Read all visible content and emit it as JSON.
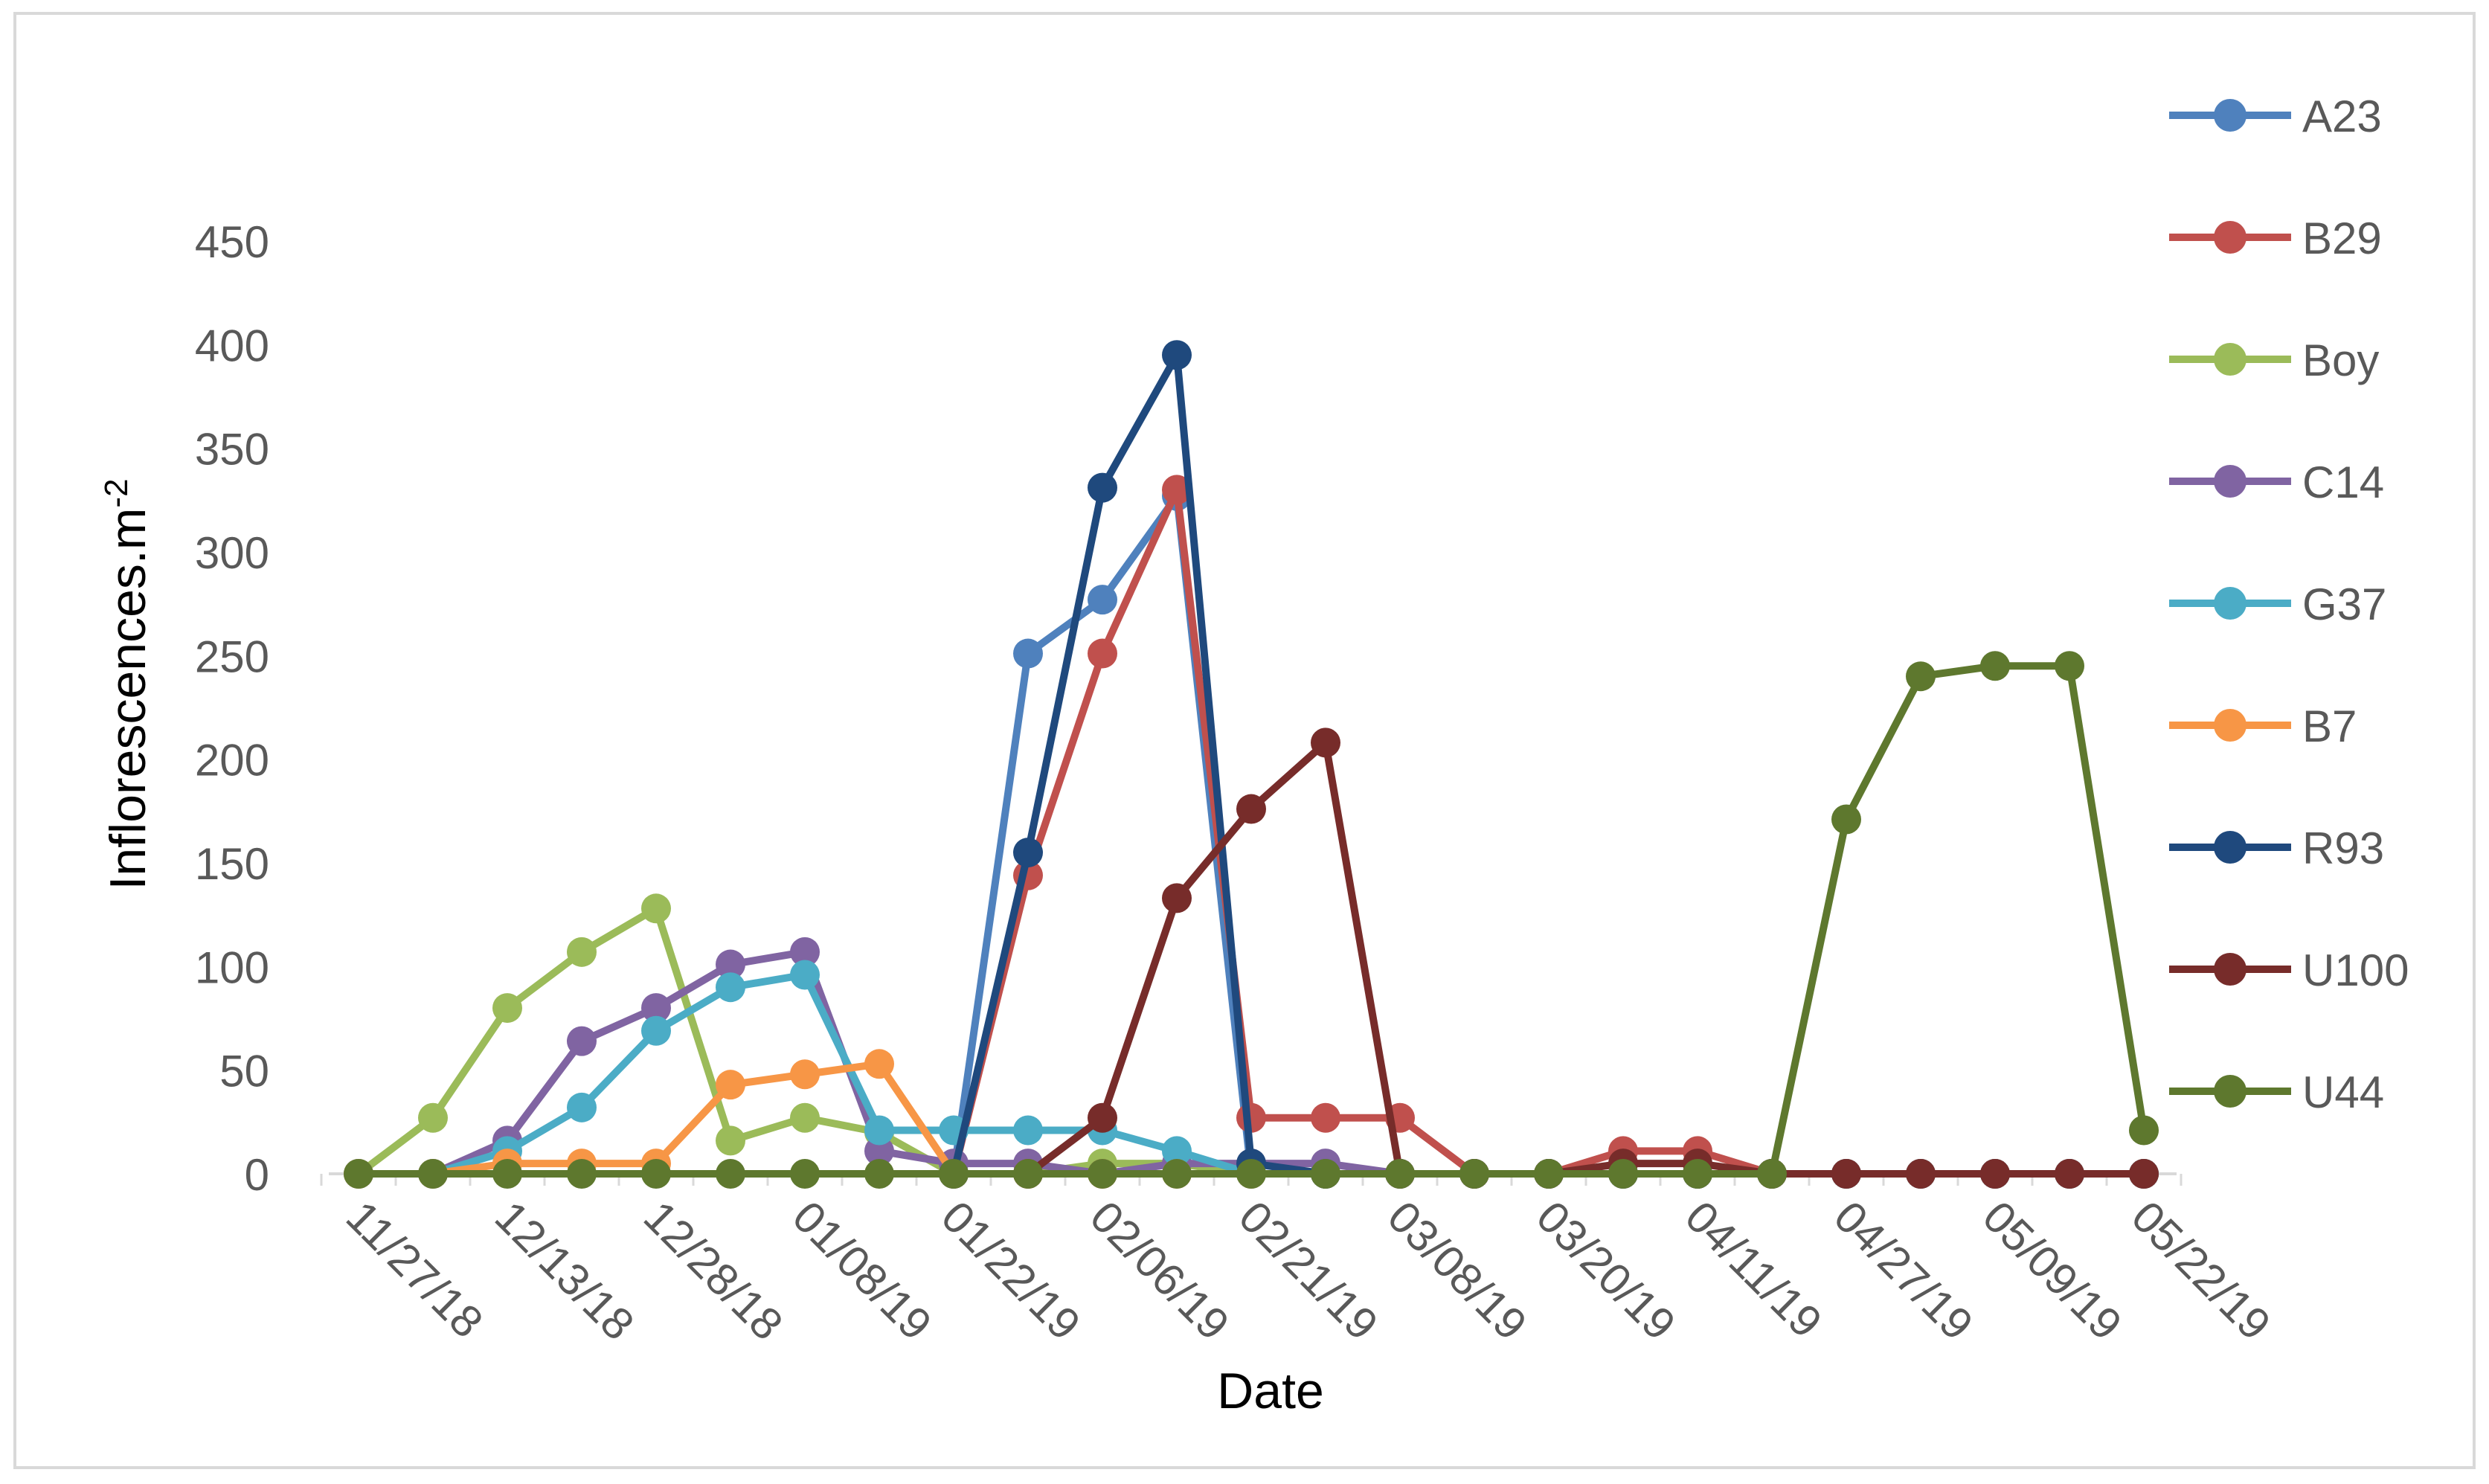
{
  "chart_data": {
    "type": "line",
    "xlabel": "Date",
    "ylabel_main": "Inflorescences.m",
    "ylabel_sup": "-2",
    "ylim": [
      0,
      450
    ],
    "yticks": [
      0,
      50,
      100,
      150,
      200,
      250,
      300,
      350,
      400,
      450
    ],
    "x_tick_labels": [
      "11/27/18",
      "12/13/18",
      "12/28/18",
      "01/08/19",
      "01/22/19",
      "02/06/19",
      "02/21/19",
      "03/08/19",
      "03/20/19",
      "04/11/19",
      "04/27/19",
      "05/09/19",
      "05/22/19"
    ],
    "x_tick_index": [
      0,
      2,
      4,
      6,
      8,
      10,
      12,
      14,
      16,
      18,
      20,
      22,
      24
    ],
    "n_points": 25,
    "grid": false,
    "legend_position": "right",
    "series": [
      {
        "name": "A23",
        "color": "#4F81BD",
        "values": [
          null,
          null,
          null,
          null,
          null,
          null,
          null,
          null,
          0,
          251,
          277,
          327,
          0,
          0,
          0,
          0,
          0,
          0,
          0,
          0,
          0,
          0,
          0,
          0,
          0
        ]
      },
      {
        "name": "B29",
        "color": "#C0504D",
        "values": [
          null,
          null,
          null,
          null,
          null,
          null,
          null,
          null,
          0,
          144,
          251,
          330,
          27,
          27,
          27,
          0,
          0,
          11,
          11,
          0,
          0,
          0,
          0,
          0,
          0
        ]
      },
      {
        "name": "Boy",
        "color": "#9BBB59",
        "values": [
          0,
          27,
          80,
          107,
          128,
          16,
          27,
          20,
          0,
          0,
          5,
          5,
          0,
          0,
          0,
          0,
          0,
          0,
          0,
          0,
          0,
          0,
          0,
          0,
          0
        ]
      },
      {
        "name": "C14",
        "color": "#8064A2",
        "values": [
          0,
          0,
          16,
          64,
          80,
          101,
          107,
          11,
          5,
          5,
          0,
          5,
          5,
          5,
          0,
          0,
          0,
          0,
          0,
          0,
          0,
          0,
          0,
          0,
          0
        ]
      },
      {
        "name": "G37",
        "color": "#4BACC6",
        "values": [
          0,
          0,
          11,
          32,
          69,
          90,
          96,
          21,
          21,
          21,
          21,
          11,
          0,
          0,
          0,
          0,
          0,
          0,
          0,
          0,
          0,
          0,
          0,
          0,
          0
        ]
      },
      {
        "name": "B7",
        "color": "#F79646",
        "values": [
          0,
          0,
          5,
          5,
          5,
          43,
          48,
          53,
          0,
          0,
          0,
          0,
          0,
          0,
          0,
          0,
          0,
          0,
          0,
          0,
          0,
          0,
          0,
          0,
          0
        ]
      },
      {
        "name": "R93",
        "color": "#1F497D",
        "values": [
          null,
          null,
          null,
          null,
          null,
          null,
          null,
          null,
          0,
          155,
          331,
          395,
          5,
          0,
          0,
          0,
          0,
          0,
          0,
          0,
          0,
          0,
          0,
          0,
          0
        ]
      },
      {
        "name": "U100",
        "color": "#772C2A",
        "values": [
          null,
          null,
          null,
          null,
          null,
          null,
          null,
          null,
          null,
          0,
          27,
          133,
          176,
          208,
          0,
          0,
          0,
          5,
          5,
          0,
          0,
          0,
          0,
          0,
          0
        ]
      },
      {
        "name": "U44",
        "color": "#5E782E",
        "values": [
          0,
          0,
          0,
          0,
          0,
          0,
          0,
          0,
          0,
          0,
          0,
          0,
          0,
          0,
          0,
          0,
          0,
          0,
          0,
          0,
          171,
          240,
          245,
          245,
          21
        ]
      }
    ]
  }
}
